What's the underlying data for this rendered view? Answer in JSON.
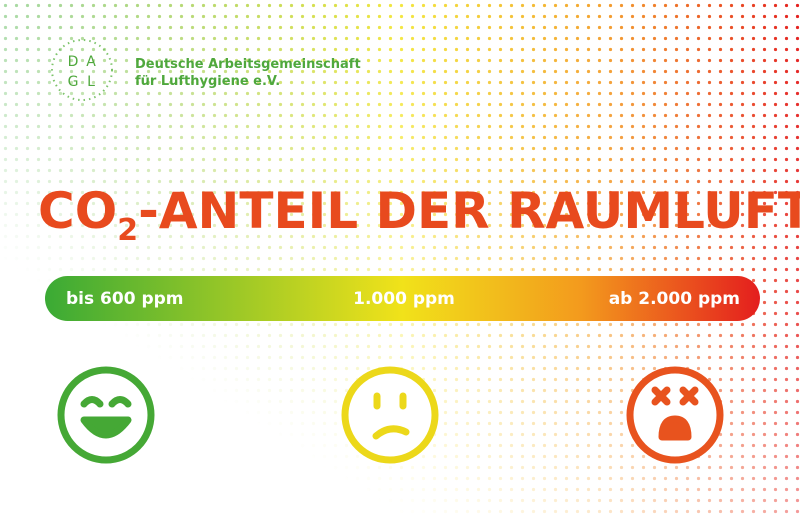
{
  "logo": {
    "letters": [
      "D",
      "A",
      "G",
      "L"
    ]
  },
  "organization": {
    "line1": "Deutsche Arbeitsgemeinschaft",
    "line2": "für Lufthygiene e.V."
  },
  "title": {
    "prefix": "CO",
    "subscript": "2",
    "rest": "-ANTEIL DER RAUMLUFT"
  },
  "scale": {
    "labels": [
      "bis 600 ppm",
      "1.000 ppm",
      "ab 2.000 ppm"
    ]
  }
}
